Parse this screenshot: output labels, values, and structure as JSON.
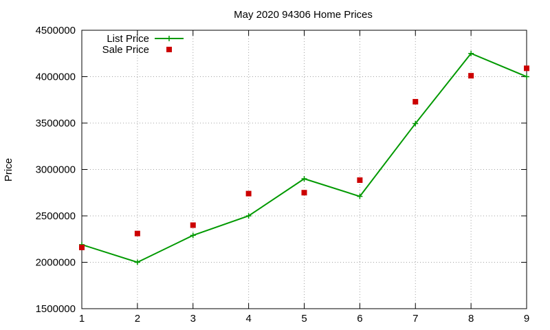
{
  "chart_data": {
    "type": "line",
    "title": "May 2020 94306 Home Prices",
    "xlabel": "",
    "ylabel": "Price",
    "x": [
      1,
      2,
      3,
      4,
      5,
      6,
      7,
      8,
      9
    ],
    "xlim": [
      1,
      9
    ],
    "ylim": [
      1500000,
      4500000
    ],
    "xticks": [
      1,
      2,
      3,
      4,
      5,
      6,
      7,
      8,
      9
    ],
    "yticks": [
      1500000,
      2000000,
      2500000,
      3000000,
      3500000,
      4000000,
      4500000
    ],
    "grid": true,
    "legend_position": "top-left",
    "series": [
      {
        "name": "List Price",
        "style": "line-with-plus-markers",
        "color": "#009900",
        "values": [
          2190000,
          2000000,
          2290000,
          2500000,
          2900000,
          2710000,
          3495000,
          4250000,
          4000000
        ]
      },
      {
        "name": "Sale Price",
        "style": "square-markers",
        "color": "#cc0000",
        "values": [
          2160000,
          2310000,
          2400000,
          2740000,
          2750000,
          2885000,
          3730000,
          4010000,
          4090000
        ]
      }
    ]
  }
}
